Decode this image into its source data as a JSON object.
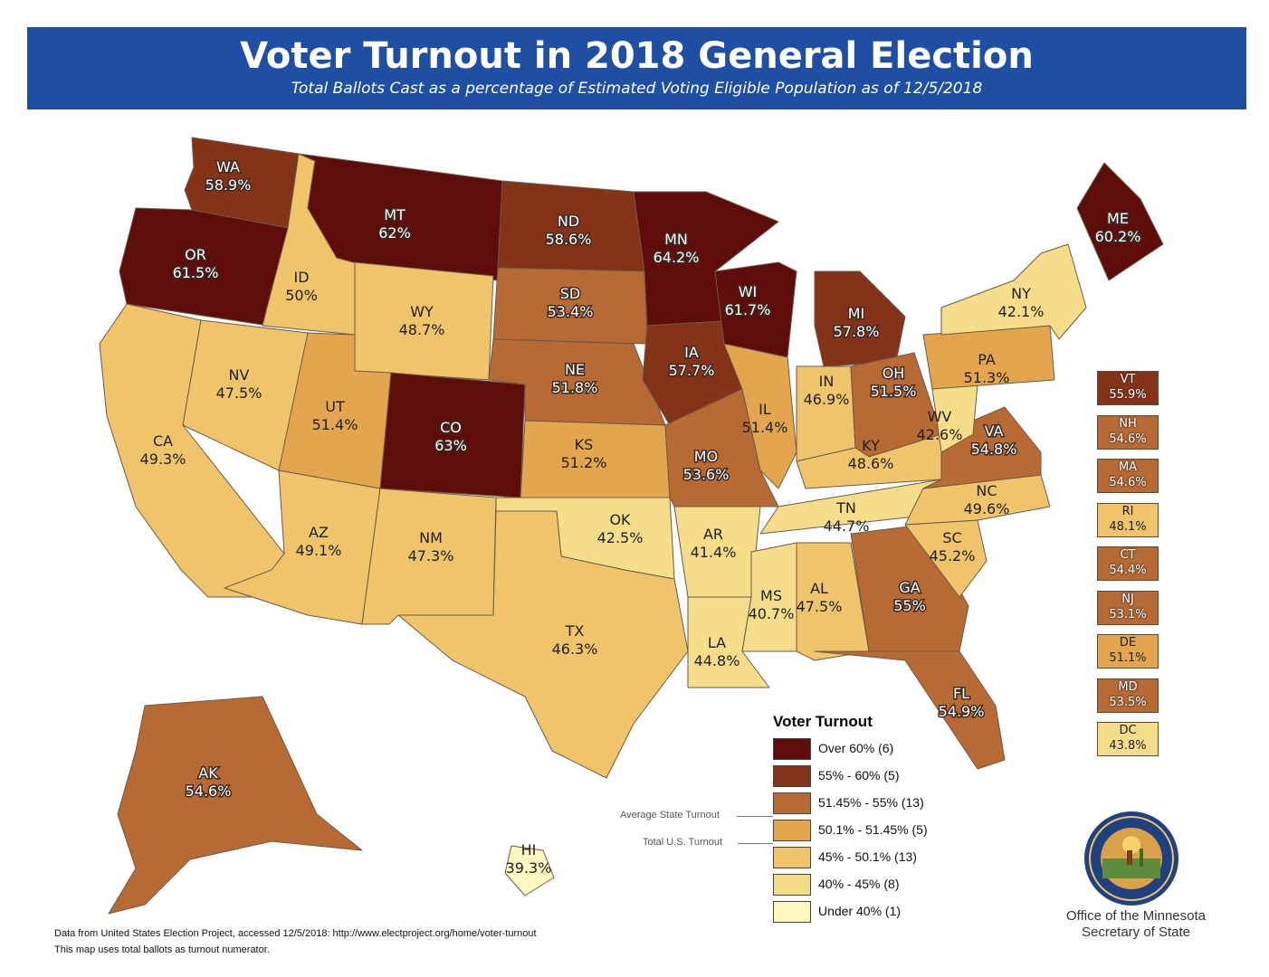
{
  "title": "Voter Turnout in 2018 General Election",
  "subtitle": "Total Ballots Cast as a percentage of Estimated Voting Eligible Population as of 12/5/2018",
  "colors": {
    "over60": "#5e0d0a",
    "c55_60": "#843318",
    "c5145_55": "#b76a33",
    "c501_5145": "#e4a54f",
    "c45_501": "#efc46a",
    "c40_45": "#f6dd89",
    "under40": "#fdf8c0",
    "banner": "#1e4fa5"
  },
  "states": [
    {
      "code": "WA",
      "value": "58.9%",
      "bin": "c55_60"
    },
    {
      "code": "OR",
      "value": "61.5%",
      "bin": "over60"
    },
    {
      "code": "CA",
      "value": "49.3%",
      "bin": "c45_501"
    },
    {
      "code": "ID",
      "value": "50%",
      "bin": "c45_501"
    },
    {
      "code": "NV",
      "value": "47.5%",
      "bin": "c45_501"
    },
    {
      "code": "MT",
      "value": "62%",
      "bin": "over60"
    },
    {
      "code": "WY",
      "value": "48.7%",
      "bin": "c45_501"
    },
    {
      "code": "UT",
      "value": "51.4%",
      "bin": "c501_5145"
    },
    {
      "code": "AZ",
      "value": "49.1%",
      "bin": "c45_501"
    },
    {
      "code": "CO",
      "value": "63%",
      "bin": "over60"
    },
    {
      "code": "NM",
      "value": "47.3%",
      "bin": "c45_501"
    },
    {
      "code": "ND",
      "value": "58.6%",
      "bin": "c55_60"
    },
    {
      "code": "SD",
      "value": "53.4%",
      "bin": "c5145_55"
    },
    {
      "code": "NE",
      "value": "51.8%",
      "bin": "c5145_55"
    },
    {
      "code": "KS",
      "value": "51.2%",
      "bin": "c501_5145"
    },
    {
      "code": "OK",
      "value": "42.5%",
      "bin": "c40_45"
    },
    {
      "code": "TX",
      "value": "46.3%",
      "bin": "c45_501"
    },
    {
      "code": "MN",
      "value": "64.2%",
      "bin": "over60"
    },
    {
      "code": "IA",
      "value": "57.7%",
      "bin": "c55_60"
    },
    {
      "code": "MO",
      "value": "53.6%",
      "bin": "c5145_55"
    },
    {
      "code": "AR",
      "value": "41.4%",
      "bin": "c40_45"
    },
    {
      "code": "LA",
      "value": "44.8%",
      "bin": "c40_45"
    },
    {
      "code": "WI",
      "value": "61.7%",
      "bin": "over60"
    },
    {
      "code": "IL",
      "value": "51.4%",
      "bin": "c501_5145"
    },
    {
      "code": "MI",
      "value": "57.8%",
      "bin": "c55_60"
    },
    {
      "code": "IN",
      "value": "46.9%",
      "bin": "c45_501"
    },
    {
      "code": "OH",
      "value": "51.5%",
      "bin": "c5145_55"
    },
    {
      "code": "KY",
      "value": "48.6%",
      "bin": "c45_501"
    },
    {
      "code": "TN",
      "value": "44.7%",
      "bin": "c40_45"
    },
    {
      "code": "MS",
      "value": "40.7%",
      "bin": "c40_45"
    },
    {
      "code": "AL",
      "value": "47.5%",
      "bin": "c45_501"
    },
    {
      "code": "GA",
      "value": "55%",
      "bin": "c5145_55"
    },
    {
      "code": "FL",
      "value": "54.9%",
      "bin": "c5145_55"
    },
    {
      "code": "SC",
      "value": "45.2%",
      "bin": "c45_501"
    },
    {
      "code": "NC",
      "value": "49.6%",
      "bin": "c45_501"
    },
    {
      "code": "VA",
      "value": "54.8%",
      "bin": "c5145_55"
    },
    {
      "code": "WV",
      "value": "42.6%",
      "bin": "c40_45"
    },
    {
      "code": "PA",
      "value": "51.3%",
      "bin": "c501_5145"
    },
    {
      "code": "NY",
      "value": "42.1%",
      "bin": "c40_45"
    },
    {
      "code": "ME",
      "value": "60.2%",
      "bin": "over60"
    },
    {
      "code": "AK",
      "value": "54.6%",
      "bin": "c5145_55"
    },
    {
      "code": "HI",
      "value": "39.3%",
      "bin": "under40"
    }
  ],
  "small_states": [
    {
      "code": "VT",
      "value": "55.9%",
      "bin": "c55_60"
    },
    {
      "code": "NH",
      "value": "54.6%",
      "bin": "c5145_55"
    },
    {
      "code": "MA",
      "value": "54.6%",
      "bin": "c5145_55"
    },
    {
      "code": "RI",
      "value": "48.1%",
      "bin": "c45_501"
    },
    {
      "code": "CT",
      "value": "54.4%",
      "bin": "c5145_55"
    },
    {
      "code": "NJ",
      "value": "53.1%",
      "bin": "c5145_55"
    },
    {
      "code": "DE",
      "value": "51.1%",
      "bin": "c501_5145"
    },
    {
      "code": "MD",
      "value": "53.5%",
      "bin": "c5145_55"
    },
    {
      "code": "DC",
      "value": "43.8%",
      "bin": "c40_45"
    }
  ],
  "legend": {
    "title": "Voter Turnout",
    "items": [
      {
        "label": "Over 60% (6)",
        "bin": "over60"
      },
      {
        "label": "55% - 60% (5)",
        "bin": "c55_60"
      },
      {
        "label": "51.45% - 55% (13)",
        "bin": "c5145_55"
      },
      {
        "label": "50.1% - 51.45% (5)",
        "bin": "c501_5145"
      },
      {
        "label": "45% - 50.1% (13)",
        "bin": "c45_501"
      },
      {
        "label": "40% - 45% (8)",
        "bin": "c40_45"
      },
      {
        "label": "Under 40% (1)",
        "bin": "under40"
      }
    ],
    "avg_state": "Average State Turnout",
    "total_us": "Total U.S. Turnout"
  },
  "footer": {
    "line1": "Data from United States Election Project, accessed 12/5/2018: http://www.electproject.org/home/voter-turnout",
    "line2": "This map uses total ballots as turnout numerator."
  },
  "office": {
    "line1": "Office of the Minnesota",
    "line2": "Secretary of State"
  },
  "seal": {
    "text": "THE GREAT SEAL OF THE STATE OF MINNESOTA",
    "motto": "L'ETOILE DU NORD",
    "year": "1858"
  }
}
